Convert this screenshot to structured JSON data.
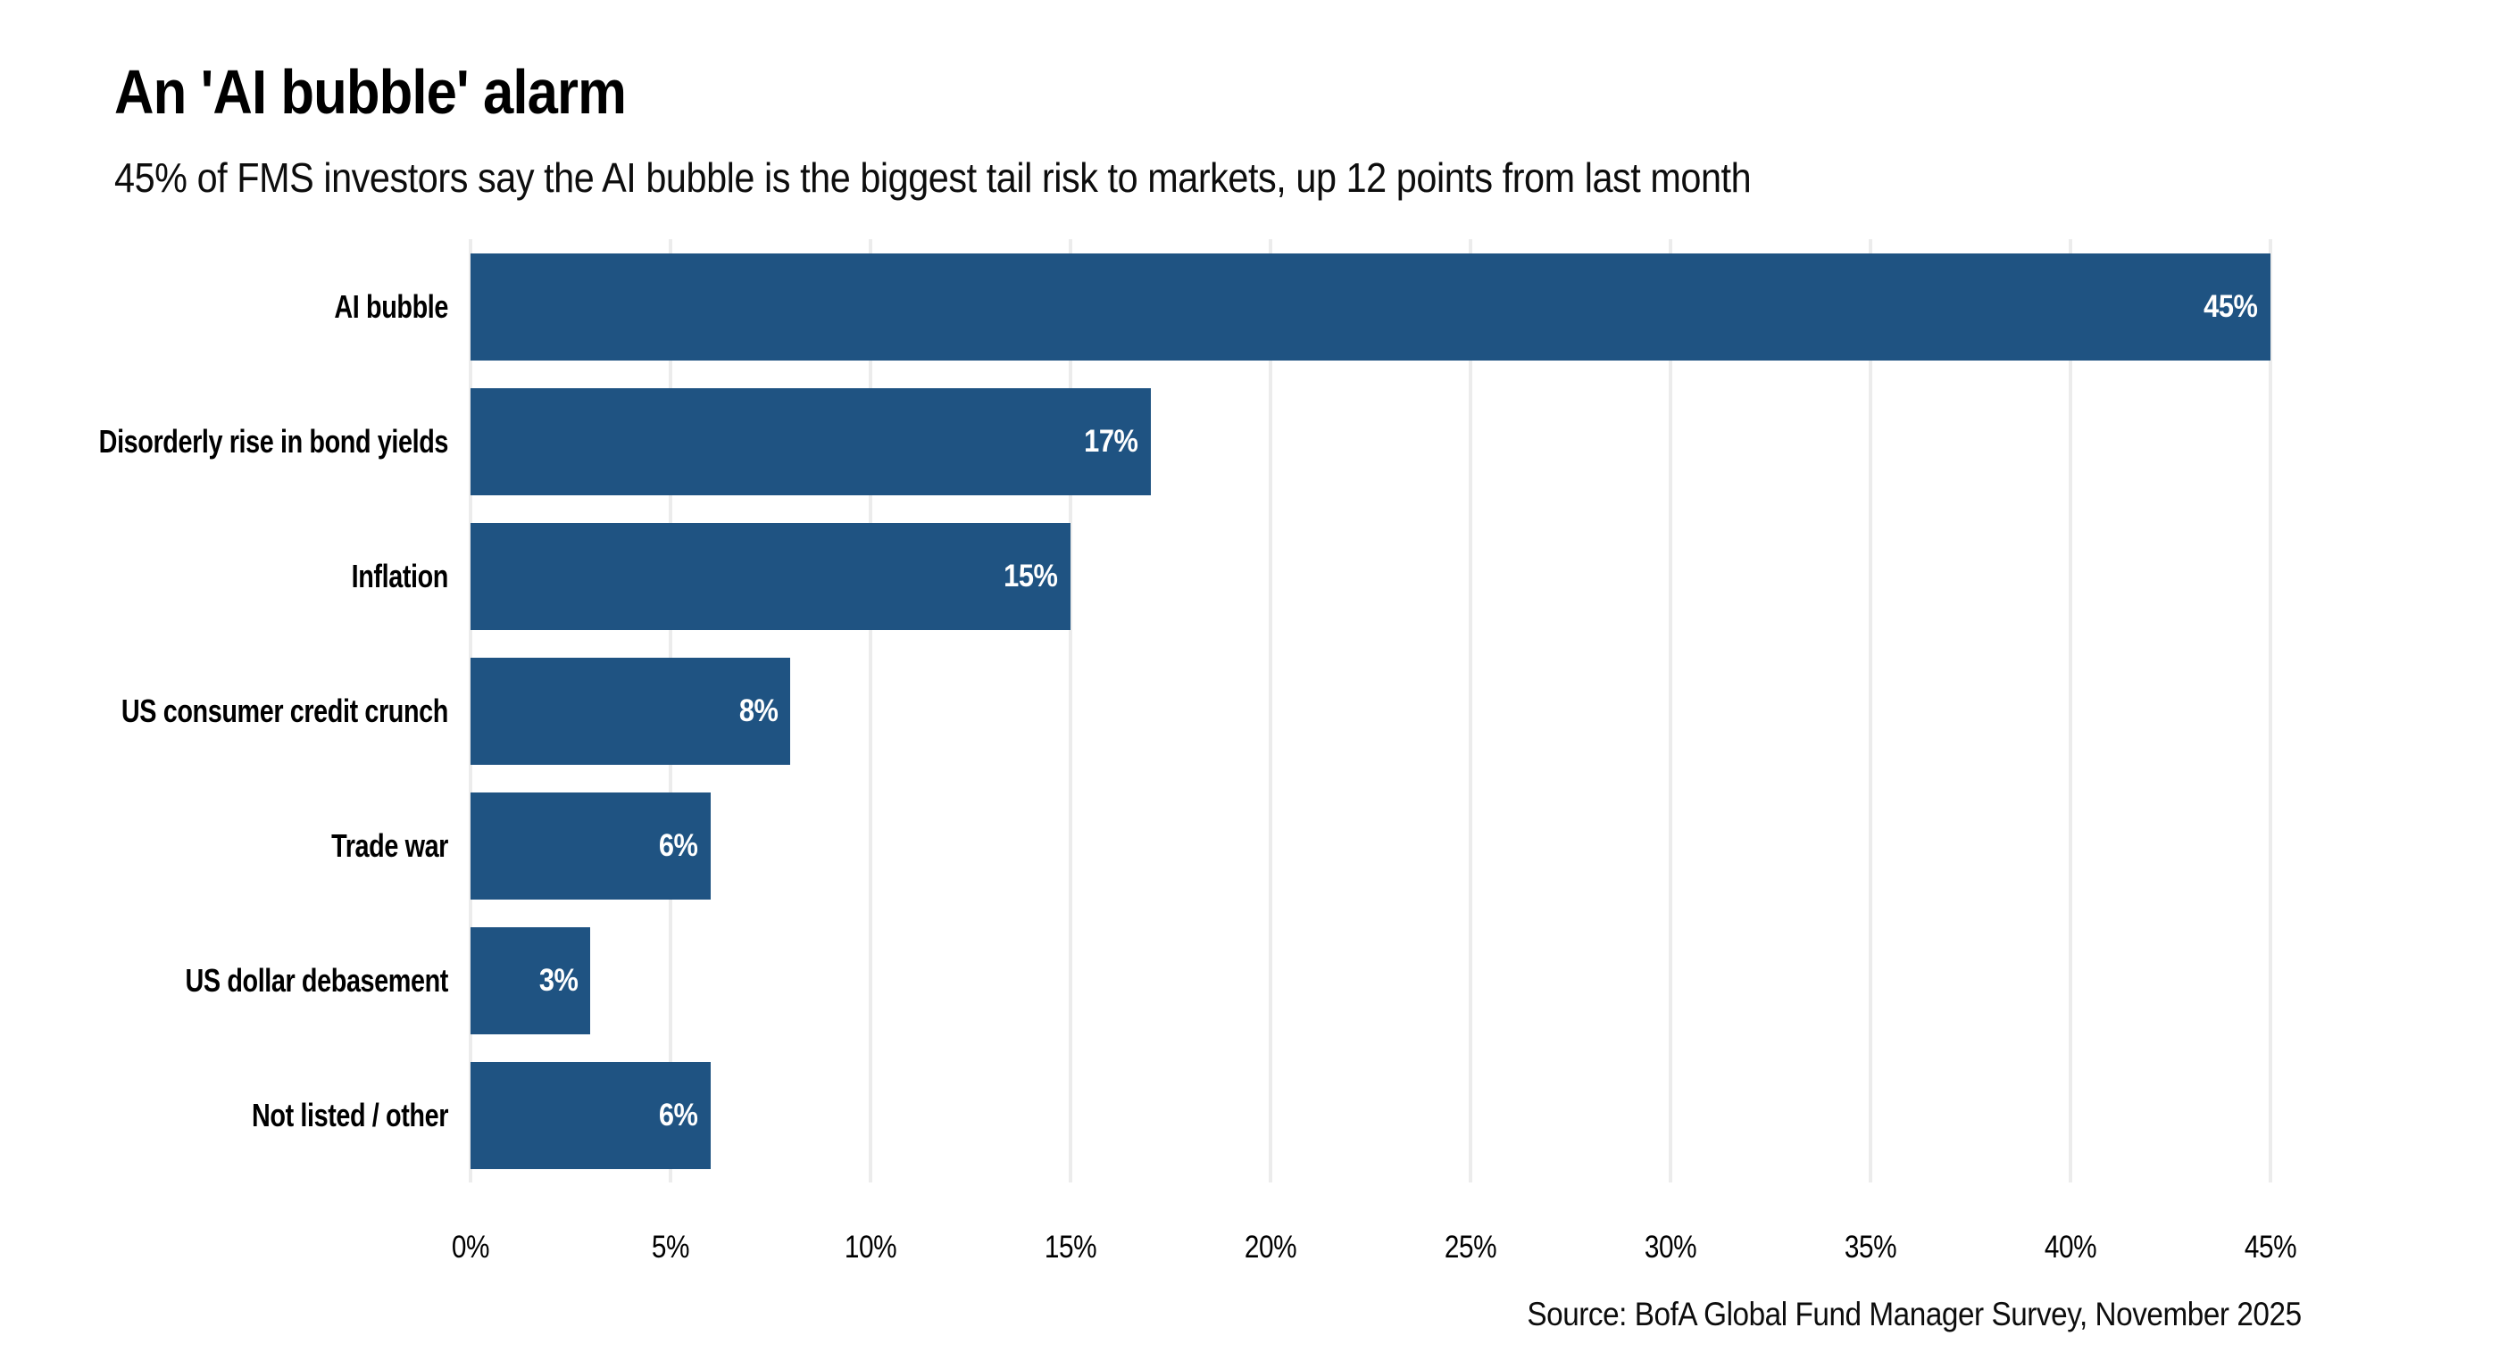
{
  "chart_data": {
    "type": "bar",
    "orientation": "horizontal",
    "title": "An 'AI bubble' alarm",
    "subtitle": "45% of FMS investors say the AI bubble is the biggest tail risk to markets, up 12 points from last month",
    "categories": [
      "AI bubble",
      "Disorderly rise in bond yields",
      "Inflation",
      "US consumer credit crunch",
      "Trade war",
      "US dollar debasement",
      "Not listed / other"
    ],
    "values": [
      45,
      17,
      15,
      8,
      6,
      3,
      6
    ],
    "bar_labels": [
      "45%",
      "17%",
      "15%",
      "8%",
      "6%",
      "3%",
      "6%"
    ],
    "xlabel": "",
    "ylabel": "",
    "xlim": [
      0,
      45
    ],
    "x_ticks": [
      0,
      5,
      10,
      15,
      20,
      25,
      30,
      35,
      40,
      45
    ],
    "x_tick_labels": [
      "0%",
      "5%",
      "10%",
      "15%",
      "20%",
      "25%",
      "30%",
      "35%",
      "40%",
      "45%"
    ],
    "grid": true,
    "legend": "none",
    "colors": {
      "bar": "#1f5382",
      "gridline": "#ececec",
      "value_label": "#ffffff",
      "text": "#000000"
    }
  },
  "footer": {
    "source": "Source: BofA Global Fund Manager Survey, November 2025"
  }
}
